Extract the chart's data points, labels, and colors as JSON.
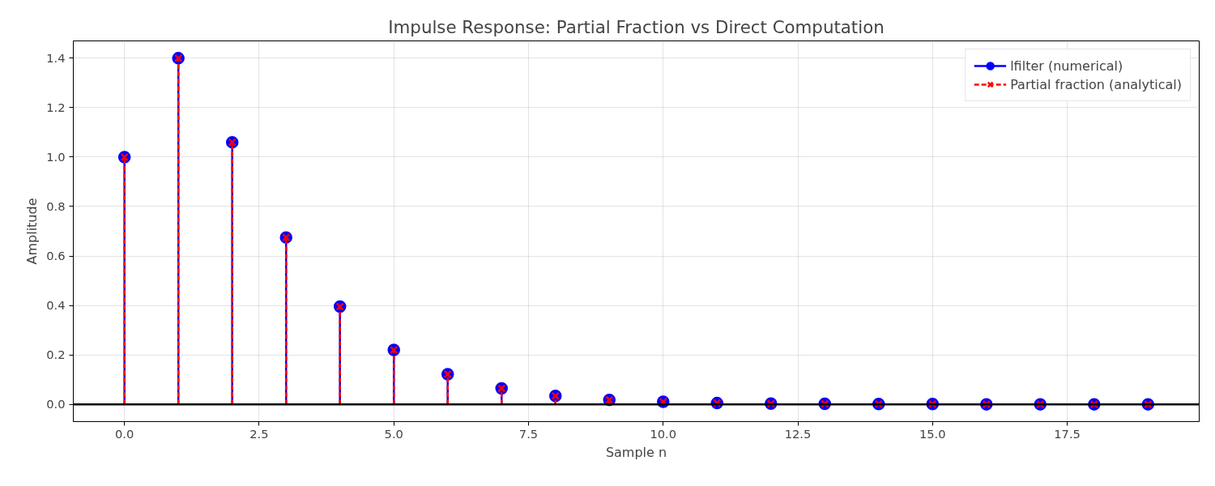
{
  "chart_data": {
    "type": "lollipop",
    "title": "Impulse Response: Partial Fraction vs Direct Computation",
    "xlabel": "Sample n",
    "ylabel": "Amplitude",
    "x": [
      0,
      1,
      2,
      3,
      4,
      5,
      6,
      7,
      8,
      9,
      10,
      11,
      12,
      13,
      14,
      15,
      16,
      17,
      18,
      19
    ],
    "series": [
      {
        "name": "lfilter (numerical)",
        "color": "#0000ff",
        "marker": "circle",
        "line_style": "solid",
        "values": [
          1.0,
          1.4,
          1.06,
          0.675,
          0.395,
          0.22,
          0.122,
          0.064,
          0.034,
          0.018,
          0.01,
          0.005,
          0.003,
          0.002,
          0.001,
          0.001,
          0.0,
          0.0,
          0.0,
          0.0
        ]
      },
      {
        "name": "Partial fraction (analytical)",
        "color": "#ff0000",
        "marker": "cross",
        "line_style": "dashed",
        "values": [
          1.0,
          1.4,
          1.06,
          0.675,
          0.395,
          0.22,
          0.122,
          0.064,
          0.034,
          0.018,
          0.01,
          0.005,
          0.003,
          0.002,
          0.001,
          0.001,
          0.0,
          0.0,
          0.0,
          0.0
        ]
      }
    ],
    "ref_lines": [
      {
        "axis": "y",
        "value": 0,
        "color": "#000000"
      }
    ],
    "xlim": [
      -0.95,
      19.95
    ],
    "ylim": [
      -0.07,
      1.47
    ],
    "xticks": [
      {
        "value": 0,
        "label": "0.0"
      },
      2.5,
      {
        "value": 5,
        "label": "5.0"
      },
      7.5,
      {
        "value": 10,
        "label": "10.0"
      },
      12.5,
      {
        "value": 15,
        "label": "15.0"
      },
      17.5
    ],
    "yticks": [
      {
        "value": 0,
        "label": "0.0"
      },
      0.2,
      0.4,
      0.6,
      0.8,
      {
        "value": 1,
        "label": "1.0"
      },
      1.2,
      1.4
    ],
    "grid": true,
    "legend": "top right"
  }
}
